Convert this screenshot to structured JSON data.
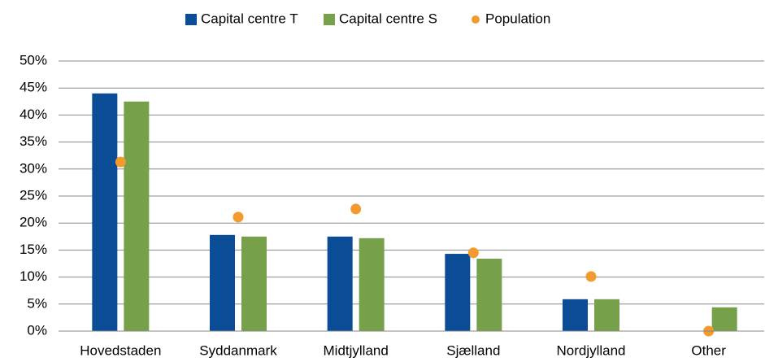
{
  "chart_data": {
    "type": "bar",
    "categories": [
      "Hovedstaden",
      "Syddanmark",
      "Midtjylland",
      "Sjælland",
      "Nordjylland",
      "Other"
    ],
    "series": [
      {
        "name": "Capital centre T",
        "type": "bar",
        "color": "#0a4c95",
        "values": [
          44.0,
          17.8,
          17.5,
          14.3,
          5.9,
          0
        ]
      },
      {
        "name": "Capital centre S",
        "type": "bar",
        "color": "#77a04a",
        "values": [
          42.5,
          17.5,
          17.2,
          13.4,
          5.9,
          4.4
        ]
      },
      {
        "name": "Population",
        "type": "scatter",
        "color": "#f39a2e",
        "values": [
          31.3,
          21.1,
          22.6,
          14.5,
          10.1,
          0
        ]
      }
    ],
    "ylim": [
      0,
      50
    ],
    "yticks": [
      {
        "value": 0,
        "label": "0%"
      },
      {
        "value": 5,
        "label": "5%"
      },
      {
        "value": 10,
        "label": "10%"
      },
      {
        "value": 15,
        "label": "15%"
      },
      {
        "value": 20,
        "label": "20%"
      },
      {
        "value": 25,
        "label": "25%"
      },
      {
        "value": 30,
        "label": "30%"
      },
      {
        "value": 35,
        "label": "35%"
      },
      {
        "value": 40,
        "label": "40%"
      },
      {
        "value": 45,
        "label": "45%"
      },
      {
        "value": 50,
        "label": "50%"
      }
    ],
    "grid": true,
    "legend": "top"
  }
}
